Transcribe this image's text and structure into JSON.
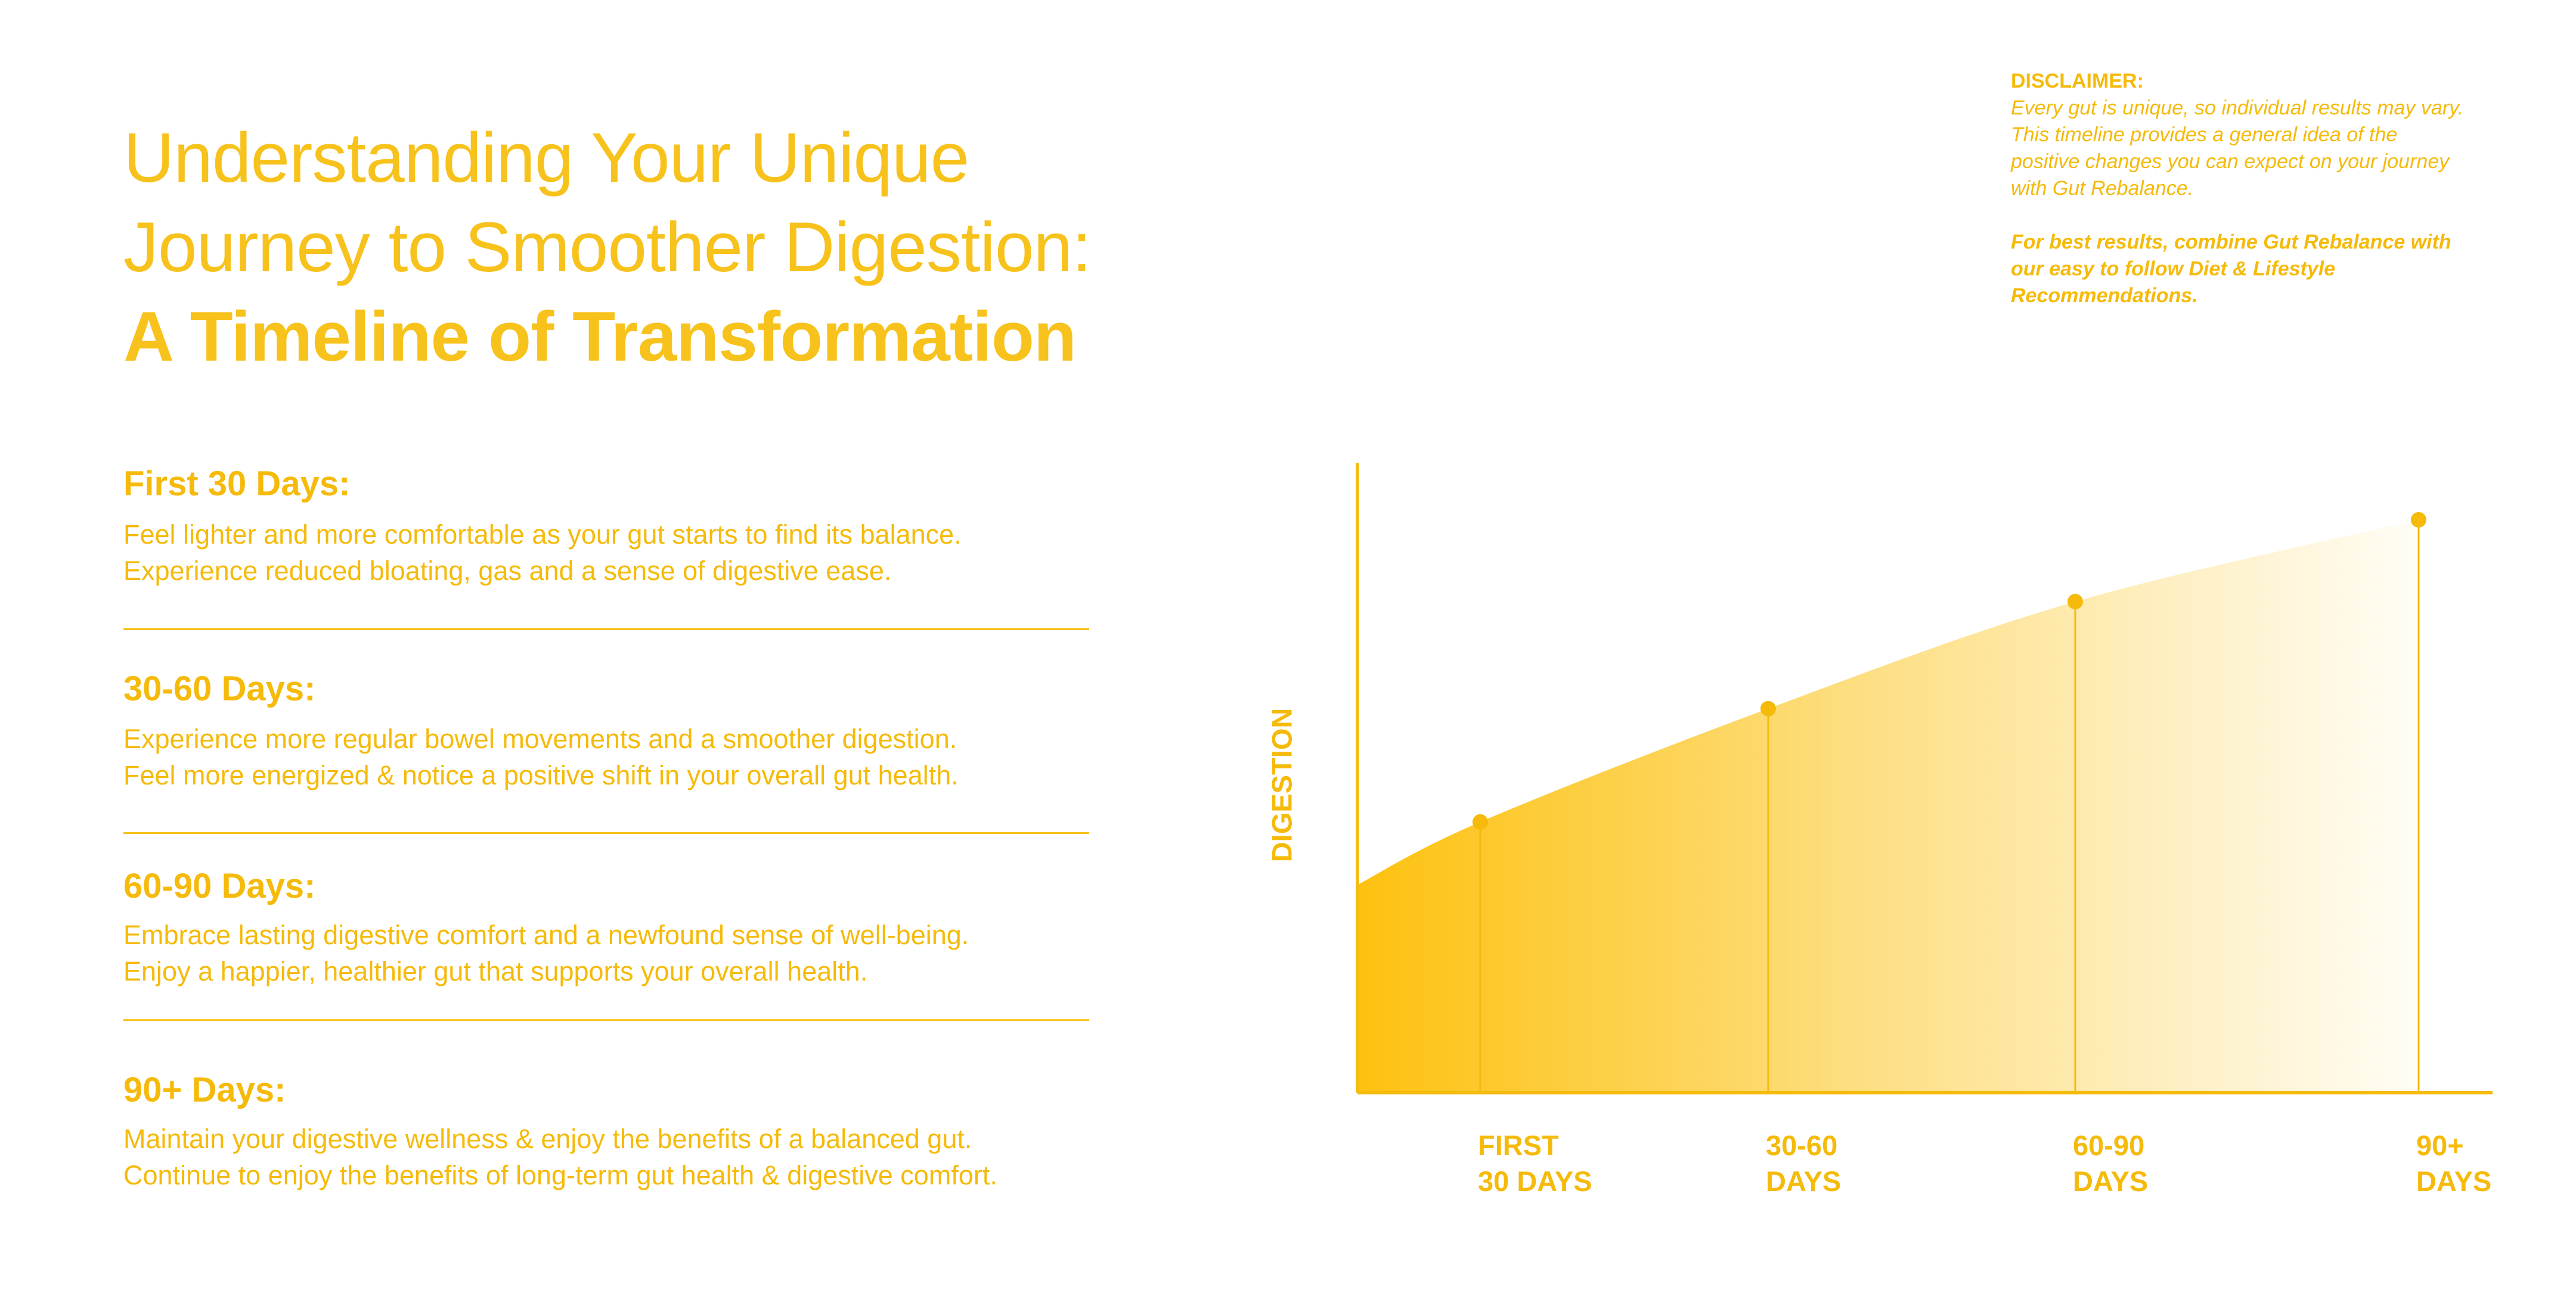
{
  "header": {
    "title_line1": "Understanding Your Unique",
    "title_line2": "Journey to Smoother Digestion:",
    "title_line3": "A Timeline of Transformation"
  },
  "disclaimer": {
    "heading": "DISCLAIMER:",
    "body": "Every gut is unique, so individual results may vary. This timeline provides a general idea of the positive changes you can expect on your journey with Gut Rebalance.",
    "emphasis": "For best results, combine Gut Rebalance with our easy to follow Diet & Lifestyle Recommendations."
  },
  "sections": [
    {
      "heading": "First 30 Days:",
      "lines": [
        "Feel lighter and more comfortable as your gut starts to find its balance.",
        "Experience reduced bloating, gas and a sense of digestive ease."
      ]
    },
    {
      "heading": "30-60 Days:",
      "lines": [
        "Experience more regular bowel movements and a smoother digestion.",
        "Feel more energized & notice a positive shift in your overall gut health."
      ]
    },
    {
      "heading": "60-90 Days:",
      "lines": [
        "Embrace lasting digestive comfort and a newfound sense of well-being.",
        "Enjoy a happier, healthier gut that supports your overall health."
      ]
    },
    {
      "heading": "90+ Days:",
      "lines": [
        "Maintain your digestive wellness & enjoy the benefits of a balanced gut.",
        "Continue to enjoy the benefits of long-term gut health & digestive comfort."
      ]
    }
  ],
  "colors": {
    "accent": "#F5BA0A",
    "fill_start": "#FDC10F",
    "fill_end": "#FFFDF6"
  },
  "chart_data": {
    "type": "area",
    "title": "",
    "xlabel": "",
    "ylabel": "DIGESTION",
    "categories": [
      {
        "line1": "FIRST",
        "line2": "30 DAYS"
      },
      {
        "line1": "30-60",
        "line2": "DAYS"
      },
      {
        "line1": "60-90",
        "line2": "DAYS"
      },
      {
        "line1": "90+",
        "line2": "DAYS"
      }
    ],
    "start_value": 33,
    "values": [
      43,
      61,
      78,
      91
    ],
    "ylim": [
      0,
      100
    ],
    "y_ticks": false,
    "grid": false,
    "legend": "none"
  }
}
